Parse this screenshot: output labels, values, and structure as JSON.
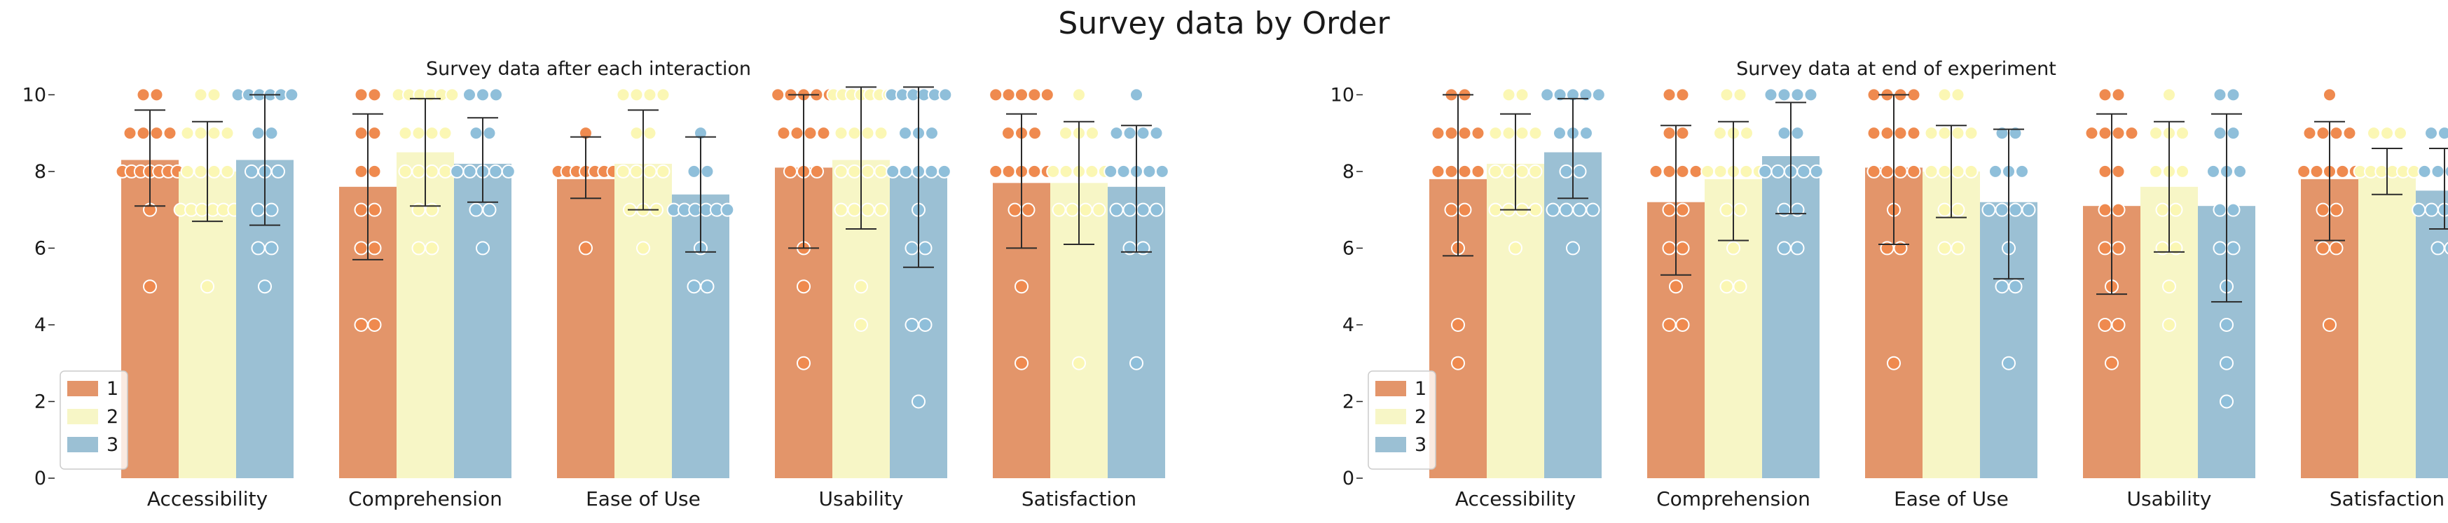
{
  "suptitle": "Survey data by Order",
  "palette": {
    "1": "#e3956a",
    "2": "#f7f6c6",
    "3": "#9bc0d4"
  },
  "point_colors": {
    "1": "#ef8a4f",
    "2": "#fbf7b4",
    "3": "#8fbfda"
  },
  "chart_data": [
    {
      "type": "bar",
      "title": "Survey data after each interaction",
      "categories": [
        "Accessibility",
        "Comprehension",
        "Ease of Use",
        "Usability",
        "Satisfaction"
      ],
      "ylim": [
        0,
        10.5
      ],
      "yticks": [
        0,
        2,
        4,
        6,
        8,
        10
      ],
      "legend": {
        "position": "lower-left",
        "labels": [
          "1",
          "2",
          "3"
        ]
      },
      "series": [
        {
          "name": "1",
          "values": [
            8.3,
            7.6,
            7.8,
            8.1,
            7.7
          ],
          "err_low": [
            7.1,
            5.7,
            7.3,
            6.0,
            6.0
          ],
          "err_high": [
            9.6,
            9.5,
            8.9,
            10.0,
            9.5
          ],
          "points": [
            [
              10,
              10,
              9,
              9,
              9,
              9,
              8,
              8,
              8,
              8,
              8,
              8,
              8,
              7,
              5
            ],
            [
              10,
              10,
              9,
              9,
              8,
              8,
              7,
              7,
              6,
              6,
              4,
              4
            ],
            [
              9,
              8,
              8,
              8,
              8,
              8,
              8,
              8,
              6
            ],
            [
              10,
              10,
              10,
              10,
              10,
              9,
              9,
              9,
              9,
              8,
              8,
              8,
              6,
              5,
              3
            ],
            [
              10,
              10,
              10,
              10,
              10,
              9,
              9,
              9,
              8,
              8,
              8,
              8,
              8,
              7,
              7,
              5,
              3
            ]
          ]
        },
        {
          "name": "2",
          "values": [
            8.0,
            8.5,
            8.2,
            8.3,
            7.7
          ],
          "err_low": [
            6.7,
            7.1,
            7.0,
            6.5,
            6.1
          ],
          "err_high": [
            9.3,
            9.9,
            9.6,
            10.2,
            9.3
          ],
          "points": [
            [
              10,
              10,
              9,
              9,
              9,
              9,
              8,
              8,
              8,
              8,
              7,
              7,
              7,
              7,
              7,
              7,
              5
            ],
            [
              10,
              10,
              10,
              10,
              10,
              10,
              9,
              9,
              9,
              9,
              8,
              8,
              8,
              8,
              7,
              7,
              6,
              6
            ],
            [
              10,
              10,
              10,
              10,
              9,
              9,
              8,
              8,
              8,
              8,
              7,
              7,
              7,
              6
            ],
            [
              10,
              10,
              10,
              10,
              10,
              10,
              10,
              9,
              9,
              9,
              9,
              8,
              8,
              8,
              8,
              7,
              7,
              7,
              7,
              5,
              4
            ],
            [
              10,
              9,
              9,
              9,
              8,
              8,
              8,
              8,
              8,
              7,
              7,
              7,
              7,
              3
            ]
          ]
        },
        {
          "name": "3",
          "values": [
            8.3,
            8.2,
            7.4,
            7.9,
            7.6
          ],
          "err_low": [
            6.6,
            7.2,
            5.9,
            5.5,
            5.9
          ],
          "err_high": [
            10.0,
            9.4,
            8.9,
            10.2,
            9.2
          ],
          "points": [
            [
              10,
              10,
              10,
              10,
              10,
              10,
              9,
              9,
              8,
              8,
              8,
              7,
              7,
              6,
              6,
              5
            ],
            [
              10,
              10,
              10,
              9,
              9,
              8,
              8,
              8,
              8,
              8,
              7,
              7,
              6
            ],
            [
              9,
              8,
              8,
              7,
              7,
              7,
              7,
              7,
              7,
              6,
              5,
              5
            ],
            [
              10,
              10,
              10,
              10,
              10,
              10,
              9,
              9,
              9,
              8,
              8,
              8,
              8,
              8,
              7,
              6,
              6,
              4,
              4,
              2
            ],
            [
              10,
              9,
              9,
              9,
              9,
              8,
              8,
              8,
              8,
              8,
              7,
              7,
              7,
              7,
              6,
              6,
              3
            ]
          ]
        }
      ]
    },
    {
      "type": "bar",
      "title": "Survey data at end of experiment",
      "categories": [
        "Accessibility",
        "Comprehension",
        "Ease of Use",
        "Usability",
        "Satisfaction"
      ],
      "ylim": [
        0,
        10.5
      ],
      "yticks": [
        0,
        2,
        4,
        6,
        8,
        10
      ],
      "legend": {
        "position": "lower-left",
        "labels": [
          "1",
          "2",
          "3"
        ]
      },
      "series": [
        {
          "name": "1",
          "values": [
            7.8,
            7.2,
            8.1,
            7.1,
            7.8
          ],
          "err_low": [
            5.8,
            5.3,
            6.1,
            4.8,
            6.2
          ],
          "err_high": [
            10.0,
            9.2,
            10.0,
            9.5,
            9.3
          ],
          "points": [
            [
              10,
              10,
              9,
              9,
              9,
              9,
              8,
              8,
              8,
              8,
              7,
              7,
              6,
              4,
              3
            ],
            [
              10,
              10,
              9,
              9,
              8,
              8,
              8,
              8,
              7,
              7,
              6,
              6,
              5,
              4,
              4
            ],
            [
              10,
              10,
              10,
              10,
              9,
              9,
              9,
              9,
              8,
              8,
              8,
              8,
              7,
              6,
              6,
              3
            ],
            [
              10,
              10,
              9,
              9,
              9,
              9,
              8,
              8,
              7,
              7,
              6,
              6,
              5,
              4,
              4,
              3
            ],
            [
              10,
              9,
              9,
              9,
              9,
              8,
              8,
              8,
              8,
              8,
              7,
              7,
              6,
              6,
              4
            ]
          ]
        },
        {
          "name": "2",
          "values": [
            8.2,
            7.8,
            8.0,
            7.6,
            8.0
          ],
          "err_low": [
            7.0,
            6.2,
            6.8,
            5.9,
            7.4
          ],
          "err_high": [
            9.5,
            9.3,
            9.2,
            9.3,
            8.6
          ],
          "points": [
            [
              10,
              10,
              9,
              9,
              9,
              9,
              8,
              8,
              8,
              8,
              7,
              7,
              7,
              7,
              6
            ],
            [
              10,
              10,
              9,
              9,
              9,
              8,
              8,
              8,
              8,
              8,
              7,
              7,
              6,
              5,
              5
            ],
            [
              10,
              10,
              9,
              9,
              9,
              9,
              8,
              8,
              8,
              8,
              7,
              7,
              6,
              6
            ],
            [
              10,
              9,
              9,
              9,
              8,
              8,
              8,
              7,
              7,
              6,
              6,
              5,
              4
            ],
            [
              9,
              9,
              9,
              8,
              8,
              8,
              8,
              8,
              8
            ]
          ]
        },
        {
          "name": "3",
          "values": [
            8.5,
            8.4,
            7.2,
            7.1,
            7.5
          ],
          "err_low": [
            7.3,
            6.9,
            5.2,
            4.6,
            6.5
          ],
          "err_high": [
            9.9,
            9.8,
            9.1,
            9.5,
            8.6
          ],
          "points": [
            [
              10,
              10,
              10,
              10,
              10,
              9,
              9,
              9,
              8,
              8,
              7,
              7,
              7,
              7,
              6
            ],
            [
              10,
              10,
              10,
              10,
              9,
              9,
              8,
              8,
              8,
              8,
              8,
              7,
              7,
              6,
              6
            ],
            [
              9,
              9,
              8,
              8,
              8,
              7,
              7,
              7,
              7,
              6,
              5,
              5,
              3
            ],
            [
              10,
              10,
              9,
              9,
              8,
              8,
              8,
              7,
              7,
              6,
              6,
              5,
              4,
              3,
              2
            ],
            [
              9,
              9,
              9,
              8,
              8,
              8,
              8,
              7,
              7,
              7,
              7,
              7,
              6,
              6
            ]
          ]
        }
      ]
    }
  ]
}
